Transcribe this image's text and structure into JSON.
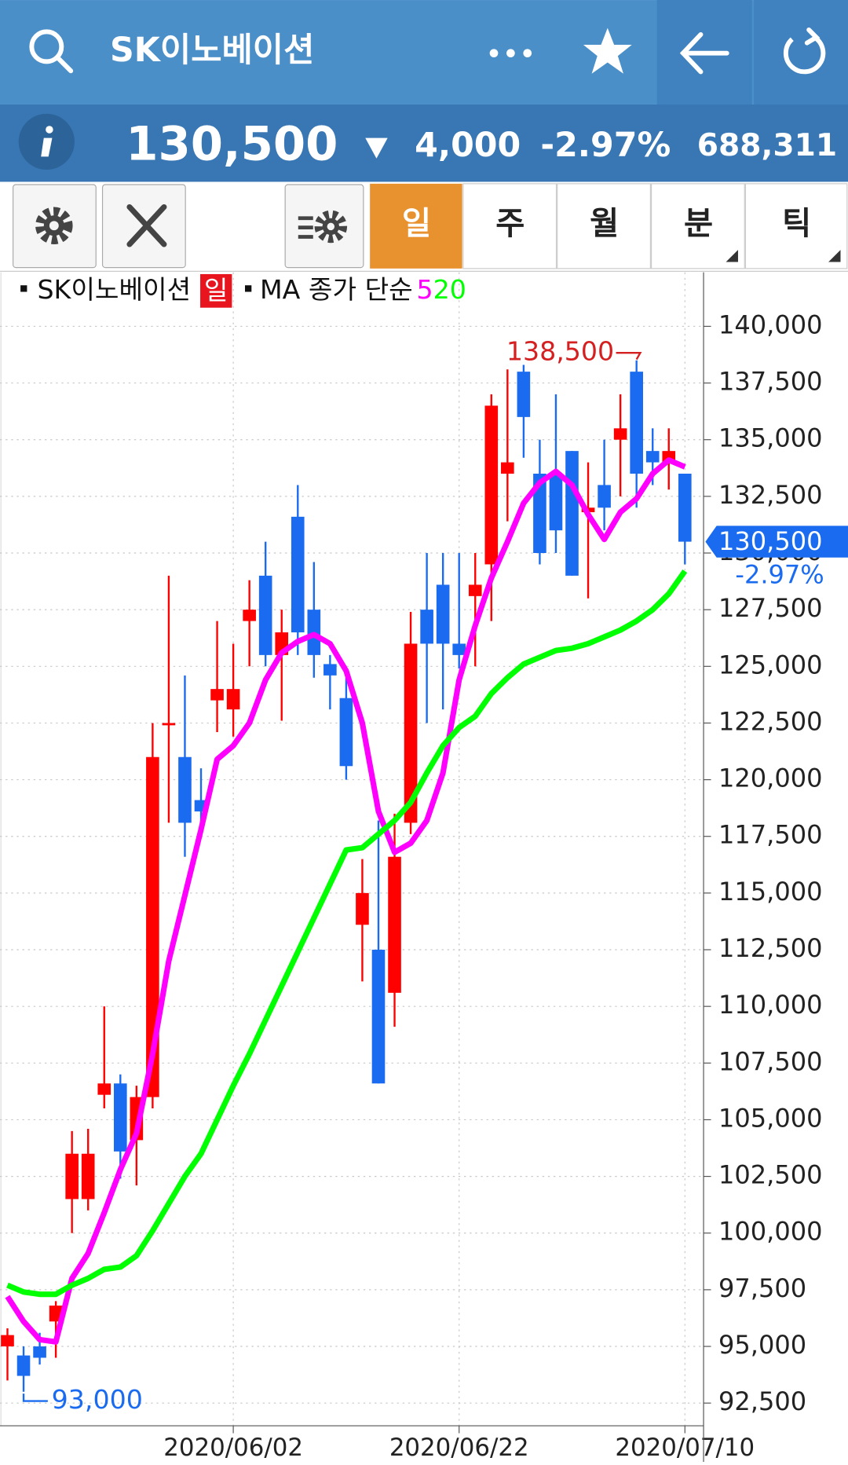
{
  "header": {
    "title": "SK이노베이션",
    "price": "130,500",
    "change": "4,000",
    "change_pct": "-2.97%",
    "volume": "688,311"
  },
  "tabs": [
    "일",
    "주",
    "월",
    "분",
    "틱"
  ],
  "chart_data": {
    "type": "candlestick",
    "series_name": "SK이노베이션",
    "period_badge": "일",
    "ma_label": "MA 종가 단순",
    "categories": [
      null,
      null,
      null,
      null,
      null,
      null,
      null,
      null,
      null,
      null,
      null,
      null,
      null,
      null,
      "2020/06/02",
      null,
      null,
      null,
      null,
      null,
      null,
      null,
      null,
      null,
      null,
      null,
      null,
      null,
      "2020/06/22",
      null,
      null,
      null,
      null,
      null,
      null,
      null,
      null,
      null,
      null,
      null,
      null,
      null,
      "2020/07/10"
    ],
    "open": [
      95000,
      94600,
      95000,
      96100,
      101500,
      101500,
      106100,
      106600,
      104100,
      106000,
      122400,
      121000,
      119100,
      123500,
      123100,
      127000,
      129000,
      125500,
      131600,
      127500,
      125100,
      123600,
      113600,
      112500,
      110600,
      118100,
      127500,
      128600,
      126000,
      128100,
      129500,
      133500,
      138000,
      133500,
      133500,
      134500,
      131800,
      133000,
      135000,
      138000,
      134500,
      134000,
      133500
    ],
    "high": [
      95800,
      95000,
      95600,
      97000,
      104500,
      104600,
      110000,
      107000,
      106500,
      122500,
      129000,
      124600,
      120500,
      127000,
      126000,
      128800,
      130500,
      127500,
      133000,
      129600,
      125500,
      124500,
      116500,
      118200,
      118500,
      127400,
      130000,
      130000,
      130000,
      130000,
      137000,
      138100,
      138300,
      135000,
      137000,
      134500,
      134000,
      135000,
      137000,
      138500,
      135500,
      135500,
      133500
    ],
    "low": [
      93500,
      93000,
      94200,
      94500,
      100000,
      101000,
      105500,
      102400,
      102100,
      105500,
      118100,
      116600,
      118000,
      122100,
      121900,
      125000,
      125000,
      122600,
      125500,
      124500,
      123100,
      120000,
      111100,
      106600,
      109100,
      117600,
      122500,
      123100,
      124900,
      125000,
      127000,
      131400,
      134200,
      129500,
      130000,
      129000,
      128000,
      131000,
      132500,
      132000,
      133000,
      132800,
      129500
    ],
    "close": [
      95500,
      93700,
      94500,
      96800,
      103500,
      103500,
      106600,
      103600,
      106000,
      121000,
      122500,
      118100,
      118600,
      124000,
      124000,
      127500,
      125500,
      126500,
      126500,
      125500,
      124600,
      120600,
      115000,
      106600,
      116600,
      126000,
      126000,
      126000,
      125500,
      128600,
      136500,
      134000,
      136000,
      130000,
      131000,
      129000,
      132000,
      132000,
      135500,
      133500,
      134000,
      134500,
      130500
    ],
    "up_color": "#ff0000",
    "down_color": "#1a6bef",
    "series": [
      {
        "name": "5",
        "color": "#ff00ff",
        "values": [
          97200,
          96100,
          95300,
          95200,
          98000,
          99100,
          100900,
          102800,
          104400,
          107900,
          112000,
          114900,
          117800,
          120900,
          121500,
          122500,
          124400,
          125600,
          126100,
          126400,
          126000,
          124800,
          122500,
          118600,
          116800,
          117200,
          118200,
          120300,
          124400,
          126800,
          128900,
          130500,
          132200,
          133100,
          133600,
          133000,
          131700,
          130600,
          131800,
          132400,
          133500,
          134100,
          133800
        ]
      },
      {
        "name": "20",
        "color": "#00ff00",
        "values": [
          97700,
          97400,
          97300,
          97300,
          97700,
          98000,
          98400,
          98500,
          99000,
          100100,
          101300,
          102500,
          103500,
          105000,
          106500,
          107900,
          109400,
          110900,
          112400,
          113900,
          115400,
          116900,
          117000,
          117600,
          118200,
          119000,
          120300,
          121500,
          122300,
          122800,
          123800,
          124500,
          125100,
          125400,
          125700,
          125800,
          126000,
          126300,
          126600,
          127000,
          127500,
          128200,
          129200
        ]
      }
    ],
    "ylim": [
      91500,
      142250
    ],
    "yticks": [
      {
        "value": 92500,
        "label": "92,500"
      },
      {
        "value": 95000,
        "label": "95,000"
      },
      {
        "value": 97500,
        "label": "97,500"
      },
      {
        "value": 100000,
        "label": "100,000"
      },
      {
        "value": 102500,
        "label": "102,500"
      },
      {
        "value": 105000,
        "label": "105,000"
      },
      {
        "value": 107500,
        "label": "107,500"
      },
      {
        "value": 110000,
        "label": "110,000"
      },
      {
        "value": 112500,
        "label": "112,500"
      },
      {
        "value": 115000,
        "label": "115,000"
      },
      {
        "value": 117500,
        "label": "117,500"
      },
      {
        "value": 120000,
        "label": "120,000"
      },
      {
        "value": 122500,
        "label": "122,500"
      },
      {
        "value": 125000,
        "label": "125,000"
      },
      {
        "value": 127500,
        "label": "127,500"
      },
      {
        "value": 130000,
        "label": "130,000"
      },
      {
        "value": 132500,
        "label": "132,500"
      },
      {
        "value": 135000,
        "label": "135,000"
      },
      {
        "value": 137500,
        "label": "137,500"
      },
      {
        "value": 140000,
        "label": "140,000"
      }
    ],
    "grid": true,
    "annotations": [
      {
        "value": 138500,
        "label": "138,500",
        "color": "#d42020"
      },
      {
        "value": 93000,
        "label": "93,000",
        "color": "#1a6bef"
      }
    ],
    "last_price": {
      "value": 130500,
      "label": "130,500"
    },
    "last_change_label": "-2.97%"
  }
}
